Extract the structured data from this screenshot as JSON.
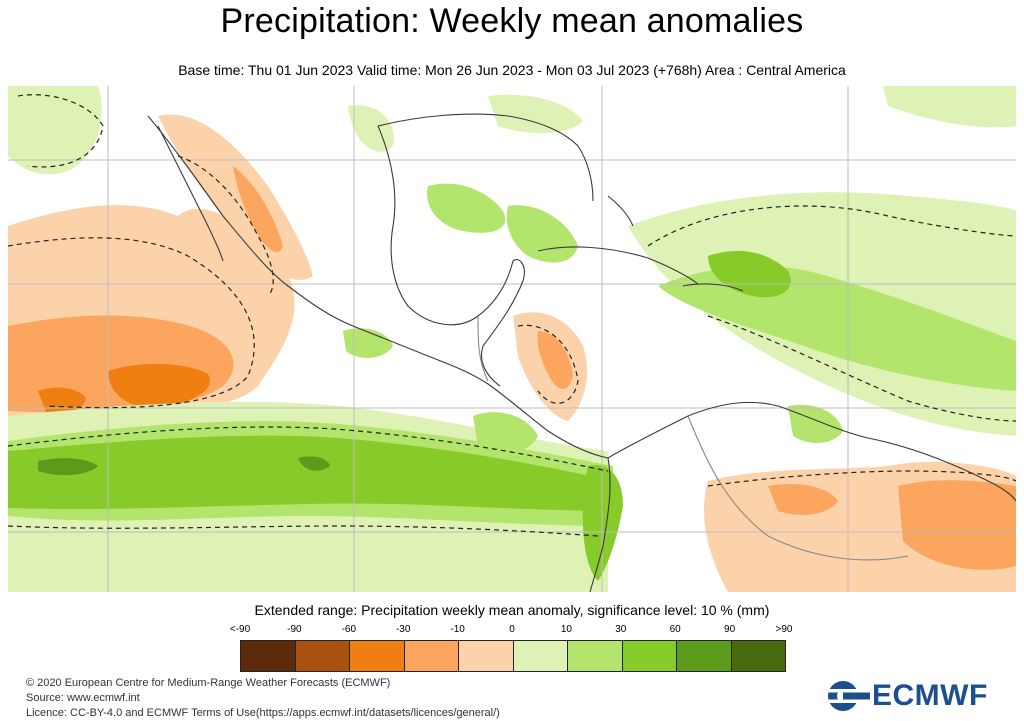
{
  "header": {
    "title": "Precipitation: Weekly mean anomalies",
    "subtitle": "Base time: Thu 01 Jun 2023 Valid time: Mon 26 Jun 2023 - Mon 03 Jul 2023 (+768h) Area : Central America"
  },
  "map": {
    "region": "Central America",
    "colors": {
      "background": "#ffffff",
      "coast": "#3a3a3a",
      "grid": "#bdbdbd",
      "significance": "#222222"
    }
  },
  "legend": {
    "title": "Extended range: Precipitation weekly mean anomaly, significance level: 10 % (mm)",
    "labels": [
      "<-90",
      "-90",
      "-60",
      "-30",
      "-10",
      "0",
      "10",
      "30",
      "60",
      "90",
      ">90"
    ],
    "colors": [
      "#5c2a0a",
      "#a9520f",
      "#f07f12",
      "#fba55e",
      "#fcd2aa",
      "#ddf2b4",
      "#b3e46c",
      "#87cb2a",
      "#5b9a1a",
      "#4a6a10"
    ]
  },
  "footer": {
    "copyright": "© 2020 European Centre for Medium-Range Weather Forecasts (ECMWF)",
    "source": "Source: www.ecmwf.int",
    "licence": "Licence: CC-BY-4.0 and ECMWF Terms of Use(https://apps.ecmwf.int/datasets/licences/general/)",
    "logo_text": "ECMWF",
    "logo_icon": "ecmwf-logo-icon"
  }
}
